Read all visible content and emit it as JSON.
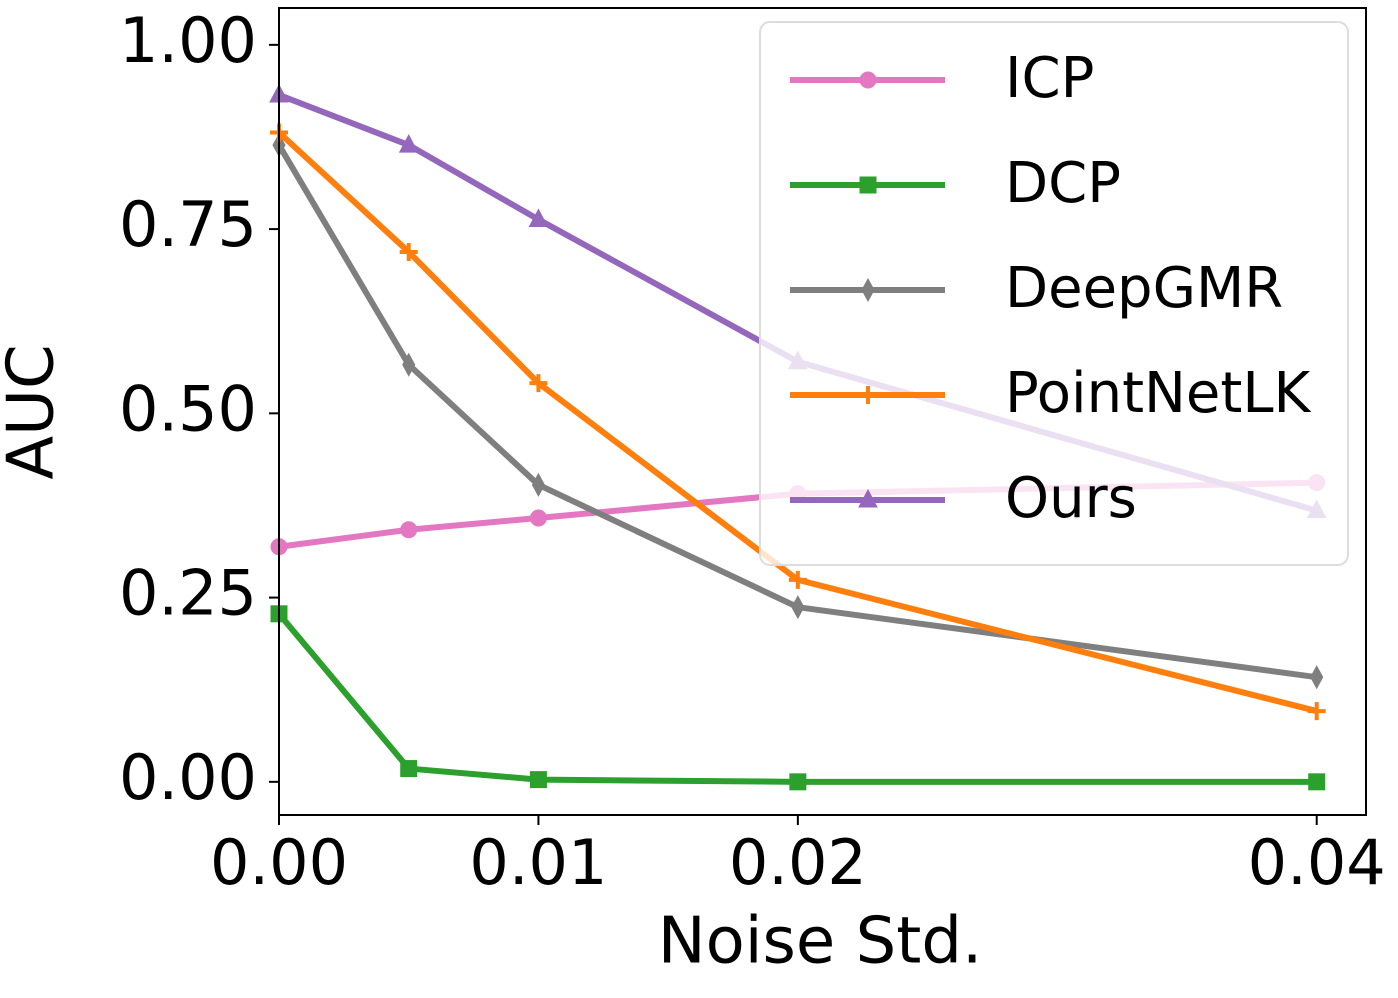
{
  "chart_data": {
    "type": "line",
    "xlabel": "Noise Std.",
    "ylabel": "AUC",
    "x": [
      0,
      0.005,
      0.01,
      0.02,
      0.04
    ],
    "series": [
      {
        "name": "ICP",
        "color": "#e377c2",
        "marker": "circle",
        "values": [
          0.319,
          0.342,
          0.358,
          0.391,
          0.406
        ]
      },
      {
        "name": "DCP",
        "color": "#2ca02c",
        "marker": "square",
        "values": [
          0.228,
          0.018,
          0.003,
          0,
          0
        ]
      },
      {
        "name": "DeepGMR",
        "color": "#7f7f7f",
        "marker": "thin-diamond",
        "values": [
          0.864,
          0.566,
          0.403,
          0.237,
          0.142
        ]
      },
      {
        "name": "PointNetLK",
        "color": "#ff7f0e",
        "marker": "plus",
        "values": [
          0.881,
          0.719,
          0.541,
          0.274,
          0.096
        ]
      },
      {
        "name": "Ours",
        "color": "#9467bd",
        "marker": "triangle",
        "values": [
          0.932,
          0.864,
          0.763,
          0.57,
          0.368
        ]
      }
    ],
    "xlim": [
      0,
      0.0419
    ],
    "ylim": [
      -0.045,
      1.05
    ],
    "xticks": [
      {
        "value": 0,
        "label": "0.00"
      },
      0.01,
      0.02,
      0.04
    ],
    "yticks": [
      {
        "value": 0,
        "label": "0.00"
      },
      0.25,
      {
        "value": 0.5,
        "label": "0.50"
      },
      0.75,
      {
        "value": 1,
        "label": "1.00"
      }
    ],
    "legend": "upper right"
  }
}
